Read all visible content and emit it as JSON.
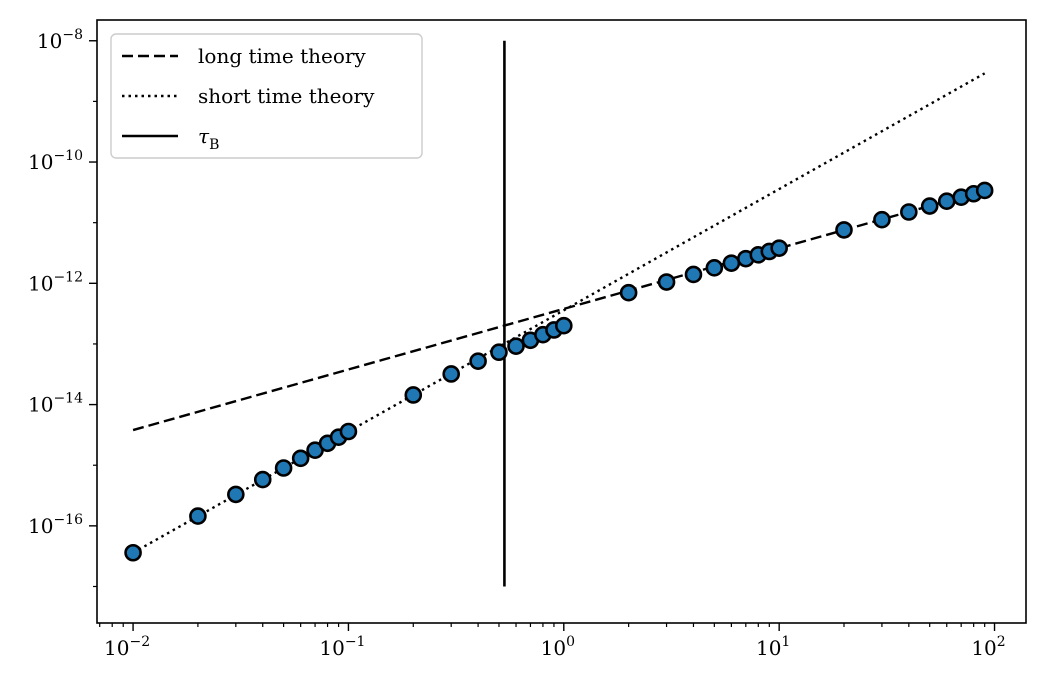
{
  "chart_data": {
    "type": "scatter",
    "title": "",
    "xlabel": "",
    "ylabel": "",
    "xscale": "log",
    "yscale": "log",
    "xlim": [
      0.0068,
      140
    ],
    "ylim": [
      2.5e-18,
      2.2e-08
    ],
    "grid": false,
    "legend_position": "top-left",
    "x_ticks": [
      {
        "value": 0.01,
        "mantissa": "10",
        "exp": "−2"
      },
      {
        "value": 0.1,
        "mantissa": "10",
        "exp": "−1"
      },
      {
        "value": 1,
        "mantissa": "10",
        "exp": "0"
      },
      {
        "value": 10,
        "mantissa": "10",
        "exp": "1"
      },
      {
        "value": 100,
        "mantissa": "10",
        "exp": "2"
      }
    ],
    "y_ticks": [
      {
        "value": 1e-16,
        "mantissa": "10",
        "exp": "−16"
      },
      {
        "value": 1e-14,
        "mantissa": "10",
        "exp": "−14"
      },
      {
        "value": 1e-12,
        "mantissa": "10",
        "exp": "−12"
      },
      {
        "value": 1e-10,
        "mantissa": "10",
        "exp": "−10"
      },
      {
        "value": 1e-08,
        "mantissa": "10",
        "exp": "−8"
      }
    ],
    "series": [
      {
        "name": "long time theory",
        "kind": "line",
        "style": "dashed",
        "color": "#000000",
        "x": [
          0.01,
          90
        ],
        "y": [
          3.8e-15,
          3.4e-11
        ]
      },
      {
        "name": "short time theory",
        "kind": "line",
        "style": "dotted",
        "color": "#000000",
        "x": [
          0.01,
          90
        ],
        "y": [
          3.6e-17,
          2.9e-09
        ]
      },
      {
        "name": "τ",
        "name_subscript": "B",
        "kind": "vline",
        "style": "solid",
        "color": "#000000",
        "x": 0.53,
        "y": [
          1e-17,
          1e-08
        ]
      },
      {
        "kind": "points",
        "color": "#1f77b4",
        "edgecolor": "#000000",
        "x": [
          0.01,
          0.02,
          0.03,
          0.04,
          0.05,
          0.06,
          0.07,
          0.08,
          0.09,
          0.1,
          0.2,
          0.3,
          0.4,
          0.5,
          0.6,
          0.7,
          0.8,
          0.9,
          1,
          2,
          3,
          4,
          5,
          6,
          7,
          8,
          9,
          10,
          20,
          30,
          40,
          50,
          60,
          70,
          80,
          90
        ],
        "y": [
          3.6e-17,
          1.45e-16,
          3.3e-16,
          5.8e-16,
          9e-16,
          1.3e-15,
          1.77e-15,
          2.3e-15,
          2.9e-15,
          3.6e-15,
          1.44e-14,
          3.2e-14,
          5.2e-14,
          7.3e-14,
          9.2e-14,
          1.15e-13,
          1.42e-13,
          1.7e-13,
          2e-13,
          7e-13,
          1.05e-12,
          1.4e-12,
          1.8e-12,
          2.15e-12,
          2.55e-12,
          2.95e-12,
          3.35e-12,
          3.8e-12,
          7.6e-12,
          1.12e-11,
          1.5e-11,
          1.88e-11,
          2.26e-11,
          2.63e-11,
          3e-11,
          3.4e-11
        ]
      }
    ]
  }
}
